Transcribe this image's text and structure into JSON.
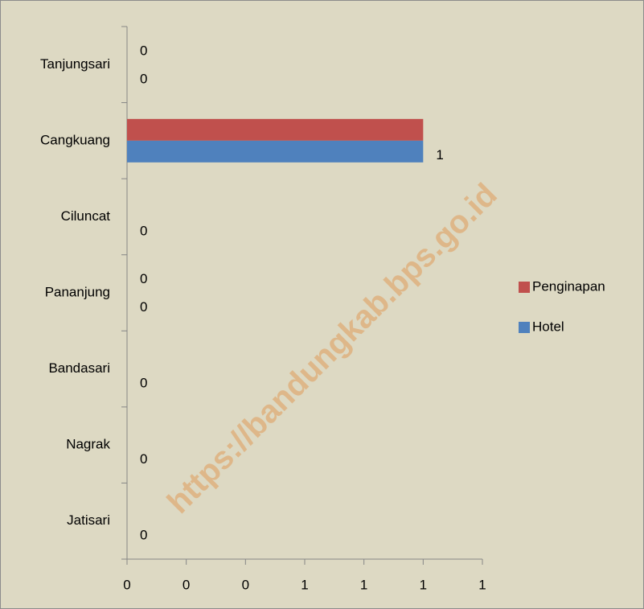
{
  "chart_data": {
    "type": "barh",
    "categories": [
      "Tanjungsari",
      "Cangkuang",
      "Ciluncat",
      "Pananjung",
      "Bandasari",
      "Nagrak",
      "Jatisari"
    ],
    "series": [
      {
        "name": "Penginapan",
        "color": "#c0504d",
        "values": [
          0,
          1,
          0,
          0,
          0,
          0,
          0
        ],
        "value_labels": [
          "0",
          null,
          null,
          "0",
          null,
          null,
          null
        ]
      },
      {
        "name": "Hotel",
        "color": "#4f81bd",
        "values": [
          0,
          1,
          0,
          0,
          0,
          0,
          0
        ],
        "value_labels": [
          "0",
          "1",
          "0",
          "0",
          "0",
          "0",
          "0"
        ]
      }
    ],
    "xlim": [
      0,
      1.2
    ],
    "xticks": [
      0,
      {
        "value": 0.2,
        "label": "0"
      },
      {
        "value": 0.4,
        "label": "0"
      },
      {
        "value": 0.6,
        "label": "1"
      },
      {
        "value": 0.8,
        "label": "1"
      },
      1,
      {
        "value": 1.2,
        "label": "1"
      }
    ],
    "legend": "right",
    "watermark": "https://bandungkab.bps.go.id"
  }
}
